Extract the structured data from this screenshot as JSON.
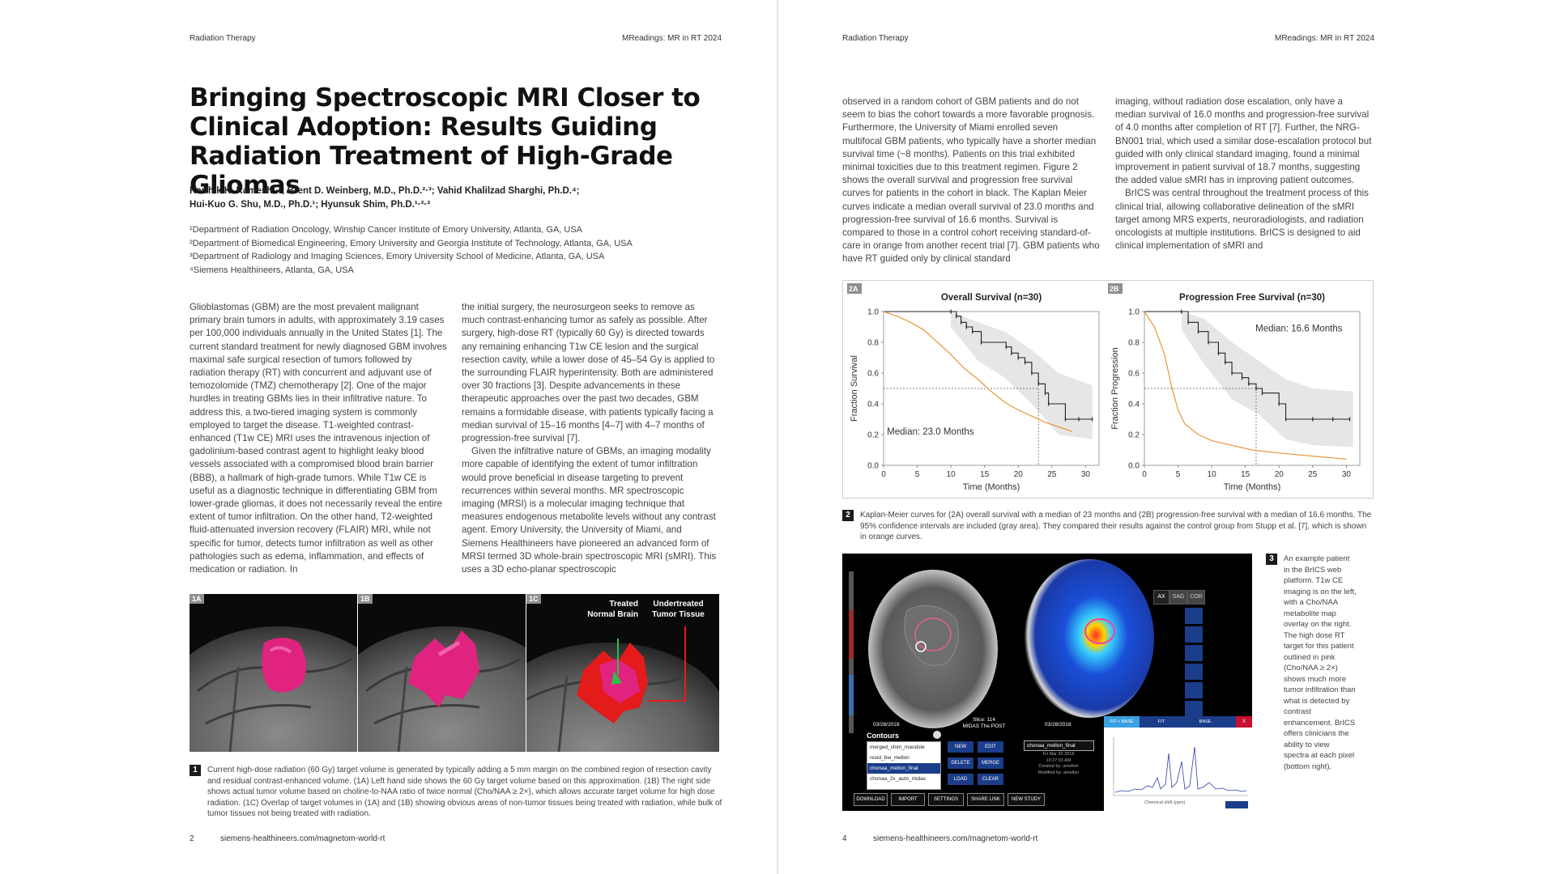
{
  "left_page": {
    "header_left": "Radiation Therapy",
    "header_right": "MReadings: MR in RT 2024",
    "title_lines": [
      "Bringing Spectroscopic MRI Closer to",
      "Clinical Adoption: Results Guiding",
      "Radiation Treatment of High-Grade Gliomas"
    ],
    "authors": {
      "line1": "Karthik K. Ramesh¹·²; Brent D. Weinberg, M.D., Ph.D.²·³; Vahid Khalilzad Sharghi, Ph.D.⁴;",
      "line2": "Hui-Kuo G. Shu, M.D., Ph.D.¹; Hyunsuk Shim, Ph.D.¹·²·³"
    },
    "affiliations": [
      "¹Department of Radiation Oncology, Winship Cancer Institute of Emory University, Atlanta, GA, USA",
      "²Department of Biomedical Engineering, Emory University and Georgia Institute of Technology, Atlanta, GA, USA",
      "³Department of Radiology and Imaging Sciences, Emory University School of Medicine, Atlanta, GA, USA",
      "⁴Siemens Healthineers, Atlanta, GA, USA"
    ],
    "col1": [
      "Glioblastomas (GBM) are the most prevalent malignant primary brain tumors in adults, with approximately 3.19 cases per 100,000 individuals annually in the United States [1]. The current standard treatment for newly diagnosed GBM involves maximal safe surgical resection of tumors followed by radiation therapy (RT) with concurrent and adjuvant use of temozolomide (TMZ) chemotherapy [2]. One of the major hurdles in treating GBMs lies in their infiltrative nature. To address this, a two-tiered imaging system is commonly employed to target the disease. T1-weighted contrast-enhanced (T1w CE) MRI uses the intravenous injection of gadolinium-based contrast agent to highlight leaky blood vessels associated with a compromised blood brain barrier (BBB), a hallmark of high-grade tumors. While T1w CE is useful as a diagnostic technique in differentiating GBM from lower-grade gliomas, it does not necessarily reveal the entire extent of tumor infiltration. On the other hand, T2-weighted fluid-attenuated inversion recovery (FLAIR) MRI, while not specific for tumor, detects tumor infiltration as well as other pathologies such as edema, inflammation, and effects of medication or radiation. In"
    ],
    "col2": [
      "the initial surgery, the neurosurgeon seeks to remove as much contrast-enhancing tumor as safely as possible. After surgery, high-dose RT (typically 60 Gy) is directed towards any remaining enhancing T1w CE lesion and the surgical resection cavity, while a lower dose of 45–54 Gy is applied to the surrounding FLAIR hyperintensity. Both are administered over 30 fractions [3]. Despite advancements in these therapeutic approaches over the past two decades, GBM remains a formidable disease, with patients typically facing a median survival of 15–16 months [4–7] with 4–7 months of progression-free survival [7].",
      "Given the infiltrative nature of GBMs, an imaging modality more capable of identifying the extent of tumor infiltration would prove beneficial in disease targeting to prevent recurrences within several months. MR spectroscopic imaging (MRSI) is a molecular imaging technique that measures endogenous metabolite levels without any contrast agent. Emory University, the University of Miami, and Siemens Healthineers have pioneered an advanced form of MRSI termed 3D whole-brain spectroscopic MRI (sMRI). This uses a 3D echo-planar spectroscopic"
    ],
    "figure1": {
      "panel_labels": [
        "1A",
        "1B",
        "1C"
      ],
      "label_treated": "Treated\nNormal Brain",
      "label_undertreated": "Undertreated\nTumor Tissue",
      "number": "1",
      "caption": "Current high-dose radiation (60 Gy) target volume is generated by typically adding a 5 mm margin on the combined region of resection cavity and residual contrast-enhanced volume. (1A) Left hand side shows the 60 Gy target volume based on this approximation. (1B) The right side shows actual tumor volume based on choline-to-NAA ratio of twice normal (Cho/NAA ≥ 2×), which allows accurate target volume for high dose radiation. (1C) Overlap of target volumes in (1A) and (1B) showing obvious areas of non-tumor tissues being treated with radiation, while bulk of tumor tissues not being treated with radiation."
    },
    "footer_page": "2",
    "footer_url": "siemens-healthineers.com/magnetom-world-rt"
  },
  "right_page": {
    "header_left": "Radiation Therapy",
    "header_right": "MReadings: MR in RT 2024",
    "col1": [
      "observed in a random cohort of GBM patients and do not seem to bias the cohort towards a more favorable prognosis. Furthermore, the University of Miami enrolled seven multifocal GBM patients, who typically have a shorter median survival time (~8 months). Patients on this trial exhibited minimal toxicities due to this treatment regimen. Figure 2 shows the overall survival and progression free survival curves for patients in the cohort in black. The Kaplan Meier curves indicate a median overall survival of 23.0 months and progression-free survival of 16.6 months. Survival is compared to those in a control cohort receiving standard-of-care in orange from another recent trial [7]. GBM patients who have RT guided only by clinical standard"
    ],
    "col2": [
      "imaging, without radiation dose escalation, only have a median survival of 16.0 months and progression-free survival of 4.0 months after completion of RT [7]. Further, the NRG-BN001 trial, which used a similar dose-escalation protocol but guided with only clinical standard imaging, found a minimal improvement in patient survival of 18.7 months, suggesting the added value sMRI has in improving patient outcomes.",
      "BrICS was central throughout the treatment process of this clinical trial, allowing collaborative delineation of the sMRI target among MRS experts, neuroradiologists, and radiation oncologists at multiple institutions. BrICS is designed to aid clinical implementation of sMRI and"
    ],
    "figure2": {
      "number": "2",
      "caption": "Kaplan-Meier curves for (2A) overall survival with a median of 23 months and (2B) progression-free survival with a median of 16.6 months. The 95% confidence intervals are included (gray area). They compared their results against the control group from Stupp et al. [7], which is shown in orange curves."
    },
    "figure3": {
      "number": "3",
      "caption": "An example patient in the BrICS web platform. T1w CE imaging is on the left, with a Cho/NAA metabolite map overlay on the right. The high dose RT target for this patient outlined in pink (Cho/NAA ≥ 2×) shows much more tumor infiltration than what is detected by contrast enhancement. BrICS offers clinicians the ability to view spectra at each pixel (bottom right).",
      "view_buttons": [
        "AX",
        "SAG",
        "COR"
      ],
      "date_left": "03/28/2018",
      "date_right": "03/28/2018",
      "slice_info": "Slice: 114\nMIDAS The POST",
      "contours_title": "Contours",
      "contours": [
        "merged_shim_maudsle",
        "resid_bw_mellon",
        "chonaa_mellon_final",
        "chonaa_2x_auto_midas"
      ],
      "contour_buttons": [
        "NEW",
        "EDIT",
        "DELETE",
        "MERGE",
        "LOAD",
        "CLEAR"
      ],
      "selected_contour": "chonaa_mellon_final",
      "selected_meta": "Fri Mar 30 2018\n10:27:01 AM\nCreated by: amellon\nModified by: amellon",
      "bottom_buttons": [
        "DOWNLOAD",
        "IMPORT",
        "SETTINGS",
        "SHARE LINK",
        "NEW STUDY"
      ],
      "spectrum_tabs": [
        "FIT + BASE",
        "FIT",
        "BASE",
        "X"
      ],
      "spectrum_xlabel": "Chemical shift (ppm)"
    },
    "footer_page": "4",
    "footer_url": "siemens-healthineers.com/magnetom-world-rt"
  },
  "chart_data": [
    {
      "type": "line",
      "panel_label": "2A",
      "title": "Overall Survival (n=30)",
      "xlabel": "Time (Months)",
      "ylabel": "Fraction Survival",
      "xlim": [
        0,
        32
      ],
      "ylim": [
        0,
        1.0
      ],
      "xticks": [
        0,
        5,
        10,
        15,
        20,
        25,
        30
      ],
      "yticks": [
        0.0,
        0.2,
        0.4,
        0.6,
        0.8,
        1.0
      ],
      "annotation": "Median: 23.0 Months",
      "median_x": 23.0,
      "series": [
        {
          "color": "#222222",
          "step": true,
          "censored": true,
          "x": [
            0,
            10,
            10.8,
            11.5,
            12.3,
            13.2,
            14.5,
            18.2,
            19,
            20,
            21,
            22,
            23,
            24,
            24.5,
            27,
            29,
            31
          ],
          "y": [
            1.0,
            1.0,
            0.97,
            0.93,
            0.9,
            0.87,
            0.8,
            0.77,
            0.73,
            0.7,
            0.67,
            0.6,
            0.53,
            0.47,
            0.4,
            0.3,
            0.3,
            0.3
          ]
        },
        {
          "color": "#e8963c",
          "step": false,
          "x": [
            0,
            2,
            4,
            6,
            8,
            10,
            12,
            14,
            16,
            18,
            20,
            22,
            24,
            26,
            28
          ],
          "y": [
            1.0,
            0.97,
            0.93,
            0.88,
            0.8,
            0.72,
            0.63,
            0.56,
            0.48,
            0.41,
            0.36,
            0.32,
            0.28,
            0.25,
            0.22
          ]
        }
      ],
      "ci_band": {
        "x": [
          10,
          14,
          18,
          22,
          26,
          31
        ],
        "lo": [
          0.9,
          0.68,
          0.57,
          0.4,
          0.2,
          0.17
        ],
        "hi": [
          1.0,
          0.93,
          0.87,
          0.75,
          0.6,
          0.52
        ]
      }
    },
    {
      "type": "line",
      "panel_label": "2B",
      "title": "Progression Free Survival (n=30)",
      "xlabel": "Time (Months)",
      "ylabel": "Fraction Progression",
      "xlim": [
        0,
        32
      ],
      "ylim": [
        0,
        1.0
      ],
      "xticks": [
        0,
        5,
        10,
        15,
        20,
        25,
        30
      ],
      "yticks": [
        0.0,
        0.2,
        0.4,
        0.6,
        0.8,
        1.0
      ],
      "annotation": "Median: 16.6 Months",
      "median_x": 16.6,
      "series": [
        {
          "color": "#222222",
          "step": true,
          "censored": true,
          "x": [
            0,
            5.5,
            6.5,
            8,
            9.5,
            11,
            12,
            13,
            14.5,
            15.5,
            16.6,
            17.5,
            20,
            21,
            25,
            28,
            30.5
          ],
          "y": [
            1.0,
            1.0,
            0.93,
            0.87,
            0.8,
            0.73,
            0.67,
            0.6,
            0.57,
            0.53,
            0.5,
            0.47,
            0.4,
            0.3,
            0.3,
            0.3,
            0.3
          ]
        },
        {
          "color": "#e8963c",
          "step": false,
          "x": [
            0,
            1.5,
            3,
            4,
            5,
            6,
            8,
            10,
            13,
            16,
            20,
            25,
            30
          ],
          "y": [
            1.0,
            0.9,
            0.72,
            0.52,
            0.36,
            0.27,
            0.2,
            0.16,
            0.13,
            0.1,
            0.08,
            0.06,
            0.04
          ]
        }
      ],
      "ci_band": {
        "x": [
          5.5,
          9,
          13,
          17,
          21,
          25,
          31
        ],
        "lo": [
          0.88,
          0.65,
          0.43,
          0.33,
          0.17,
          0.13,
          0.12
        ],
        "hi": [
          1.0,
          0.95,
          0.8,
          0.68,
          0.56,
          0.5,
          0.48
        ]
      }
    }
  ]
}
